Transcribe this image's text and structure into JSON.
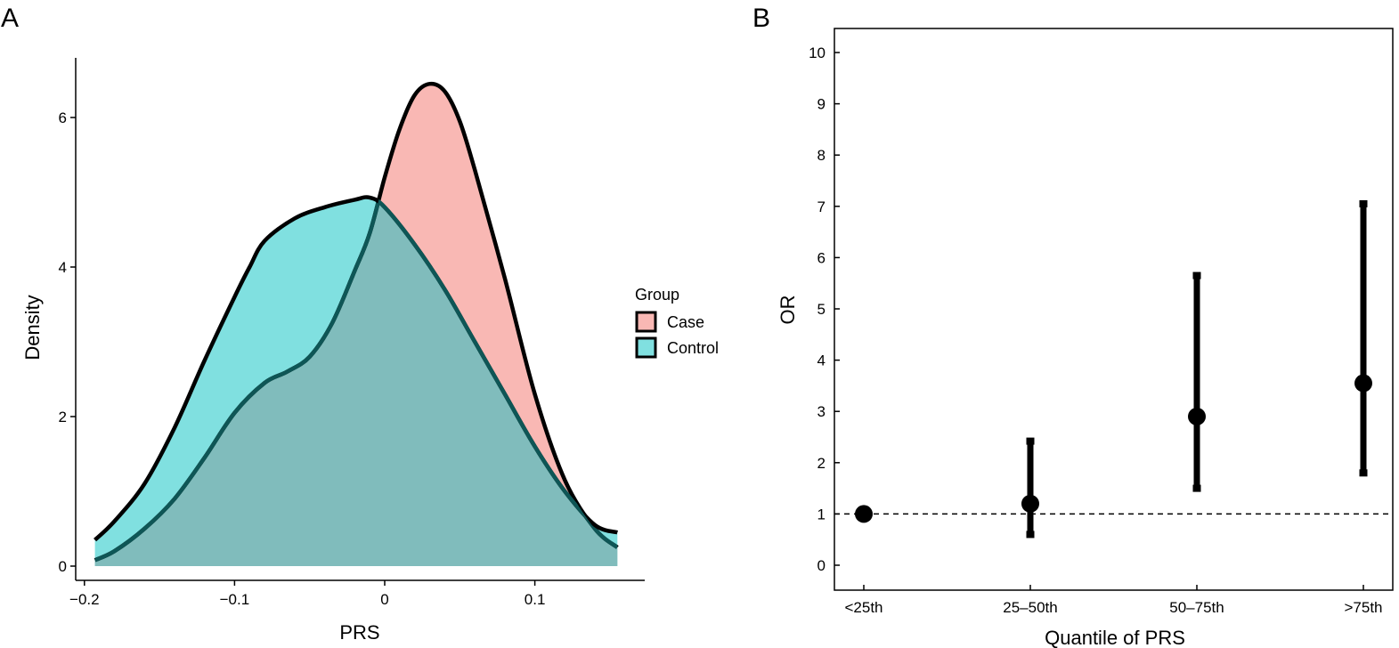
{
  "colors": {
    "case_fill": "#f9b8b4",
    "control_fill": "#80e0e0",
    "overlap_fill": "#80bcbc",
    "control_line_in_case": "#0e5656",
    "outline": "#000000"
  },
  "chart_data": [
    {
      "panel": "A",
      "type": "area",
      "xlabel": "PRS",
      "ylabel": "Density",
      "xlim": [
        -0.2,
        0.17
      ],
      "ylim": [
        0,
        6.8
      ],
      "x_ticks": [
        -0.2,
        -0.1,
        0,
        0.1
      ],
      "x_tick_labels": [
        "−0.2",
        "−0.1",
        "0",
        "0.1"
      ],
      "y_ticks": [
        0,
        2,
        4,
        6
      ],
      "y_tick_labels": [
        "0",
        "2",
        "4",
        "6"
      ],
      "legend": {
        "title": "Group",
        "position": "right",
        "entries": [
          "Case",
          "Control"
        ]
      },
      "series": [
        {
          "name": "Case",
          "x": [
            -0.193,
            -0.18,
            -0.16,
            -0.14,
            -0.12,
            -0.1,
            -0.08,
            -0.065,
            -0.05,
            -0.035,
            -0.02,
            -0.01,
            0,
            0.01,
            0.02,
            0.03,
            0.04,
            0.05,
            0.06,
            0.08,
            0.1,
            0.12,
            0.14,
            0.155
          ],
          "values": [
            0.08,
            0.2,
            0.5,
            0.9,
            1.45,
            2.05,
            2.45,
            2.6,
            2.8,
            3.25,
            3.95,
            4.45,
            5.2,
            5.85,
            6.3,
            6.45,
            6.35,
            5.95,
            5.3,
            3.85,
            2.3,
            1.15,
            0.5,
            0.25
          ]
        },
        {
          "name": "Control",
          "x": [
            -0.193,
            -0.18,
            -0.16,
            -0.14,
            -0.12,
            -0.1,
            -0.09,
            -0.08,
            -0.06,
            -0.04,
            -0.02,
            -0.01,
            0,
            0.02,
            0.04,
            0.06,
            0.08,
            0.1,
            0.12,
            0.14,
            0.155
          ],
          "values": [
            0.35,
            0.6,
            1.1,
            1.85,
            2.75,
            3.6,
            4.0,
            4.35,
            4.65,
            4.8,
            4.9,
            4.93,
            4.8,
            4.3,
            3.7,
            3.0,
            2.3,
            1.6,
            1.0,
            0.55,
            0.45
          ]
        }
      ]
    },
    {
      "panel": "B",
      "type": "scatter",
      "subtype": "point-with-error-bars",
      "xlabel": "Quantile of PRS",
      "ylabel": "OR",
      "categories": [
        "<25th",
        "25–50th",
        "50–75th",
        ">75th"
      ],
      "values": [
        1.0,
        1.2,
        2.9,
        3.55
      ],
      "lower": [
        null,
        0.6,
        1.5,
        1.8
      ],
      "upper": [
        null,
        2.42,
        5.65,
        7.05
      ],
      "ylim": [
        -0.5,
        10.5
      ],
      "y_ticks": [
        0,
        1,
        2,
        3,
        4,
        5,
        6,
        7,
        8,
        9,
        10
      ],
      "y_tick_labels": [
        "0",
        "1",
        "2",
        "3",
        "4",
        "5",
        "6",
        "7",
        "8",
        "9",
        "10"
      ],
      "reference_line": 1,
      "reference_line_style": "dashed",
      "grid": false
    }
  ]
}
